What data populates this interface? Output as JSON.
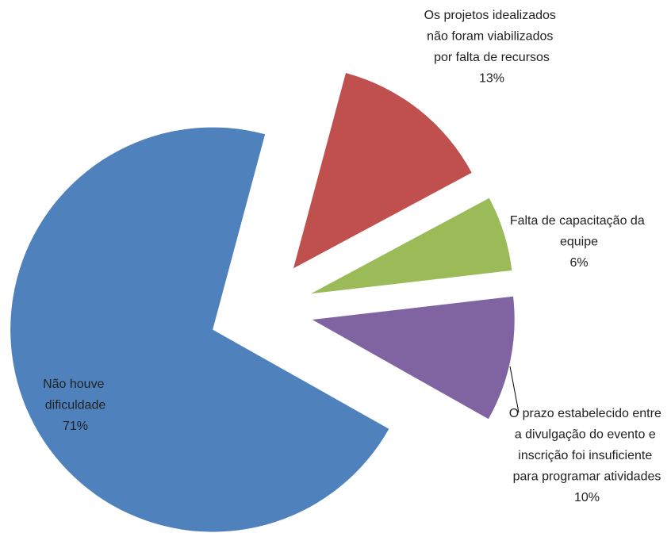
{
  "chart_data": {
    "type": "pie",
    "categories": [
      "Os projetos idealizados não foram viabilizados por falta de recursos",
      "Falta de capacitação da equipe",
      "O prazo estabelecido entre a divulgação do evento e inscrição foi insuficiente para programar atividades",
      "Não houve dificuldade"
    ],
    "values": [
      13,
      6,
      10,
      71
    ],
    "value_labels": [
      "13%",
      "6%",
      "10%",
      "71%"
    ],
    "colors": [
      "#c0504d",
      "#9bbb59",
      "#8064a2",
      "#4f81bd"
    ]
  }
}
